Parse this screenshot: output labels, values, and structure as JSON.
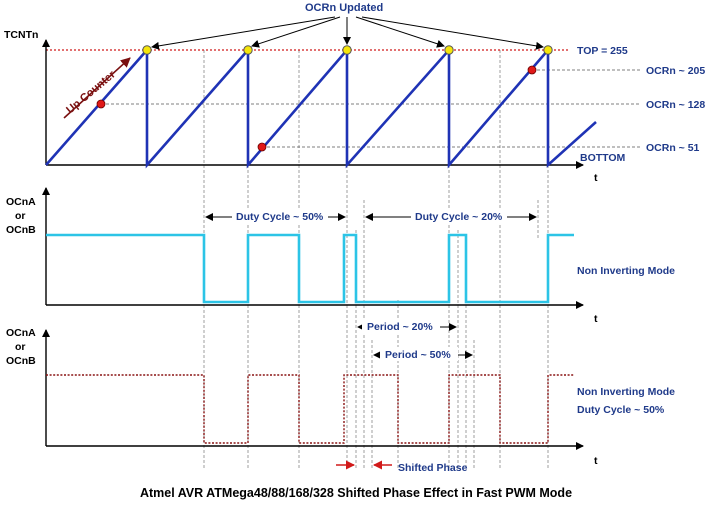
{
  "labels": {
    "ocrn_updated": "OCRn Updated",
    "tcntn": "TCNTn",
    "top": "TOP = 255",
    "ocrn_205": "OCRn ~ 205",
    "ocrn_128": "OCRn ~ 128",
    "ocrn_51": "OCRn ~ 51",
    "bottom": "BOTTOM",
    "t1": "t",
    "t2": "t",
    "t3": "t",
    "up_counter": "Up Counter",
    "ocna_1": "OCnA",
    "or_1": "or",
    "ocnb_1": "OCnB",
    "ocna_2": "OCnA",
    "or_2": "or",
    "ocnb_2": "OCnB",
    "duty_50": "Duty Cycle ~ 50%",
    "duty_20": "Duty Cycle ~ 20%",
    "non_inverting_1": "Non Inverting Mode",
    "period_20": "Period ~ 20%",
    "period_50": "Period ~ 50%",
    "non_inverting_2": "Non Inverting Mode",
    "duty_cycle_50": "Duty Cycle ~ 50%",
    "shifted_phase": "Shifted Phase",
    "caption": "Atmel AVR ATMega48/88/168/328 Shifted Phase Effect in Fast PWM Mode"
  },
  "colors": {
    "counter": "#1f33b5",
    "top_line": "#d11a1a",
    "pwm_top": "#2cc4e6",
    "pwm_bottom": "#8a1414",
    "marker_yellow": "#f5e50a",
    "marker_red": "#e01818",
    "label": "#1f3a8a"
  }
}
